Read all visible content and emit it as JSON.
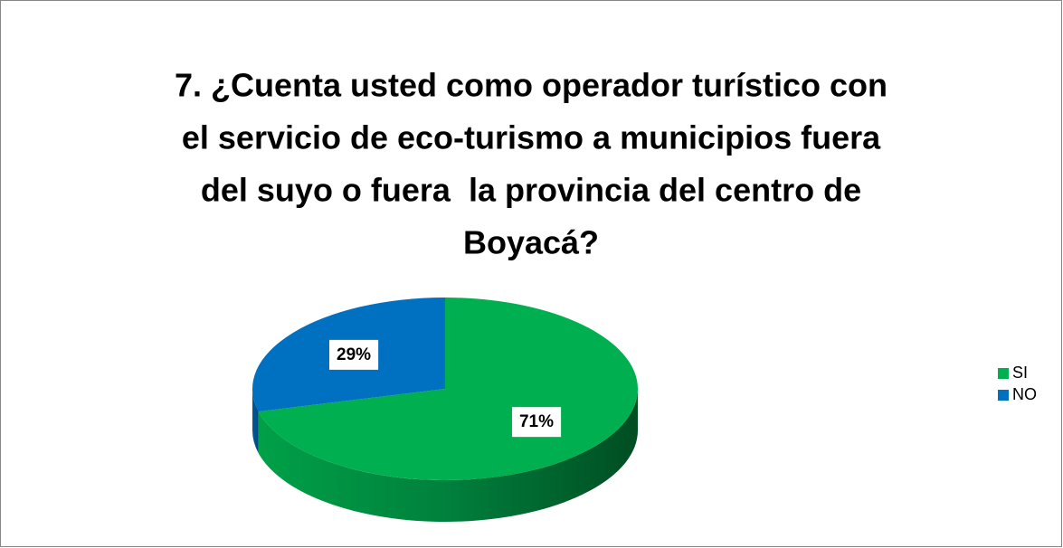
{
  "chart_data": {
    "type": "pie3d",
    "title": [
      "7. ¿Cuenta usted como operador turístico con",
      "el servicio de eco-turismo a municipios fuera",
      "del suyo o fuera  la provincia del centro de",
      "Boyacá?"
    ],
    "categories": [
      "SI",
      "NO"
    ],
    "values": [
      71,
      29
    ],
    "value_labels": [
      "71%",
      "29%"
    ],
    "colors": [
      "#00b050",
      "#0070c0"
    ],
    "legend": "right"
  }
}
